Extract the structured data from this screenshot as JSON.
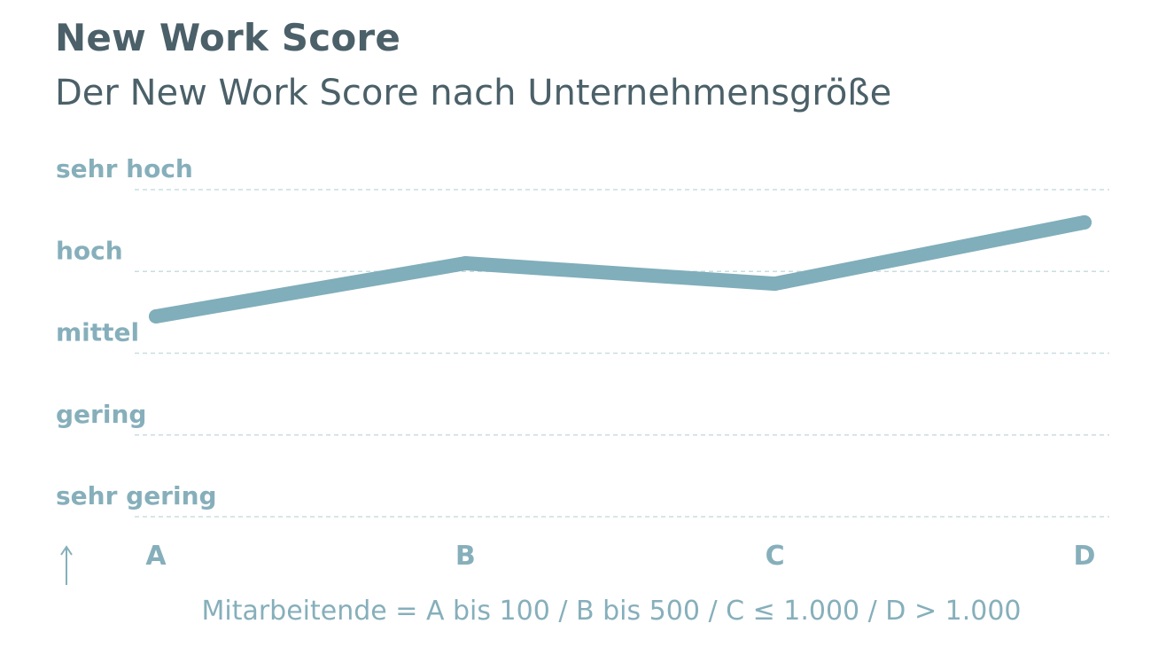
{
  "chart_data": {
    "type": "line",
    "title": "New Work Score",
    "subtitle": "Der New Work Score nach Unternehmensgröße",
    "categories": [
      "A",
      "B",
      "C",
      "D"
    ],
    "y_levels": [
      "sehr gering",
      "gering",
      "mittel",
      "hoch",
      "sehr hoch"
    ],
    "ylim": [
      1,
      5
    ],
    "values": [
      3.45,
      4.1,
      3.85,
      4.6
    ],
    "caption": "Mitarbeitende = A bis 100 / B bis 500 / C ≤ 1.000 / D > 1.000",
    "grid": true,
    "line_color": "#80aebb",
    "grid_color": "#c9dde2",
    "label_color": "#86afbb",
    "title_color": "#4b6068"
  },
  "icons": {
    "axis_arrow": "arrow-up-icon"
  }
}
